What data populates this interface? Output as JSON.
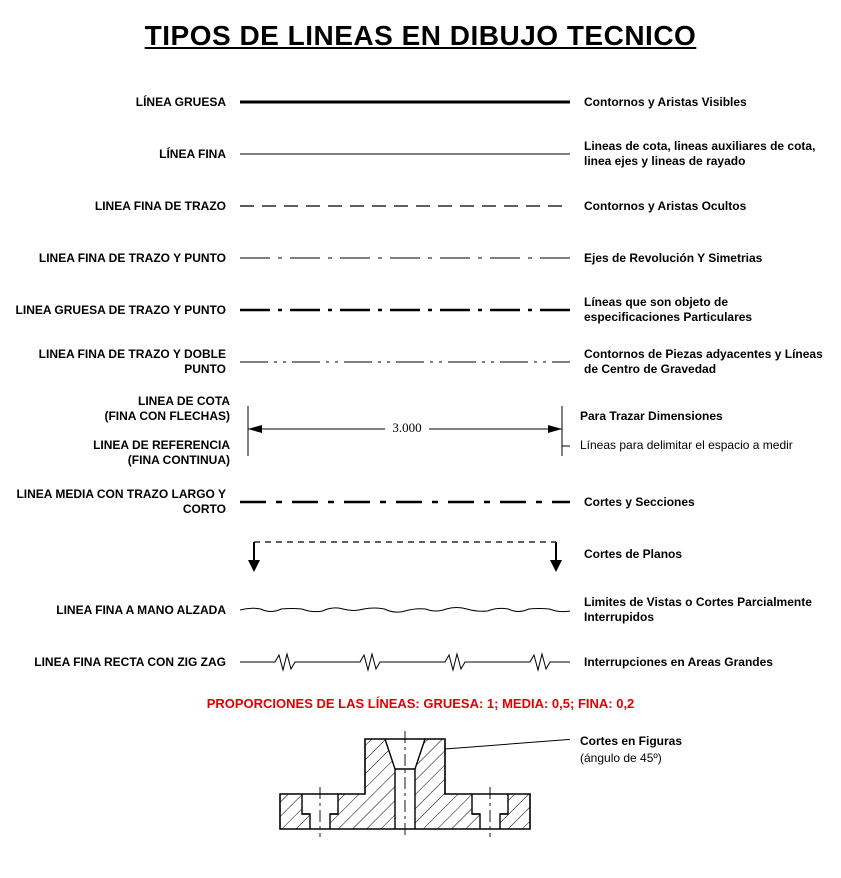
{
  "title": "TIPOS DE LINEAS EN DIBUJO TECNICO",
  "colors": {
    "text": "#000000",
    "bg": "#ffffff",
    "accent": "#e30000",
    "stroke": "#000000"
  },
  "line_widths": {
    "thick": 3,
    "medium": 1.8,
    "thin": 1
  },
  "rows": [
    {
      "label": "LÍNEA GRUESA",
      "desc": "Contornos y Aristas Visibles",
      "style": {
        "type": "solid",
        "width": 3,
        "dash": null
      }
    },
    {
      "label": "LÍNEA FINA",
      "desc": "Lineas de cota, lineas auxiliares de cota, linea ejes y lineas de rayado",
      "style": {
        "type": "solid",
        "width": 1,
        "dash": null
      }
    },
    {
      "label": "LINEA FINA DE TRAZO",
      "desc": "Contornos y Aristas Ocultos",
      "style": {
        "type": "dash",
        "width": 1.3,
        "dash": "14 8"
      }
    },
    {
      "label": "LINEA FINA DE TRAZO Y PUNTO",
      "desc": "Ejes de Revolución Y Simetrias",
      "style": {
        "type": "dash",
        "width": 1,
        "dash": "30 8 4 8"
      }
    },
    {
      "label": "LINEA GRUESA DE TRAZO Y PUNTO",
      "desc": "Líneas que son objeto de especificaciones Particulares",
      "style": {
        "type": "dash",
        "width": 2.5,
        "dash": "30 8 4 8"
      }
    },
    {
      "label": "LINEA FINA DE TRAZO Y DOBLE PUNTO",
      "desc": "Contornos de Piezas adyacentes y Líneas de Centro de Gravedad",
      "style": {
        "type": "dash",
        "width": 1,
        "dash": "28 6 3 6 3 6"
      }
    }
  ],
  "cota": {
    "label_top": "LINEA DE COTA\n(FINA CON FLECHAS)",
    "label_bottom": "LINEA DE REFERENCIA\n(FINA CONTINUA)",
    "desc_top": "Para Trazar Dimensiones",
    "desc_bottom": "Líneas para delimitar el espacio a medir",
    "dimension_text": "3.000",
    "style": {
      "width": 1
    }
  },
  "rows2": [
    {
      "label": "LINEA MEDIA CON TRAZO LARGO Y CORTO",
      "desc": "Cortes y Secciones",
      "style": {
        "type": "dash",
        "width": 2.5,
        "dash": "26 10 6 10"
      }
    }
  ],
  "cutplane": {
    "desc": "Cortes de Planos",
    "style": {
      "width": 1.3,
      "dash": "6 5"
    }
  },
  "rows3": [
    {
      "label": "LINEA FINA A MANO ALZADA",
      "desc": "Limites de Vistas o Cortes Parcialmente Interrupidos",
      "style": {
        "type": "freehand",
        "width": 1
      }
    },
    {
      "label": "LINEA FINA RECTA CON ZIG ZAG",
      "desc": "Interrupciones en Areas Grandes",
      "style": {
        "type": "zigzag",
        "width": 1
      }
    }
  ],
  "proportions_note": "PROPORCIONES DE LAS LÍNEAS: GRUESA: 1; MEDIA: 0,5; FINA: 0,2",
  "figure": {
    "desc_title": "Cortes en Figuras",
    "desc_sub": "(ángulo de 45º)",
    "stroke_width": 1.5,
    "hatch_spacing": 8,
    "hatch_angle": 45
  }
}
